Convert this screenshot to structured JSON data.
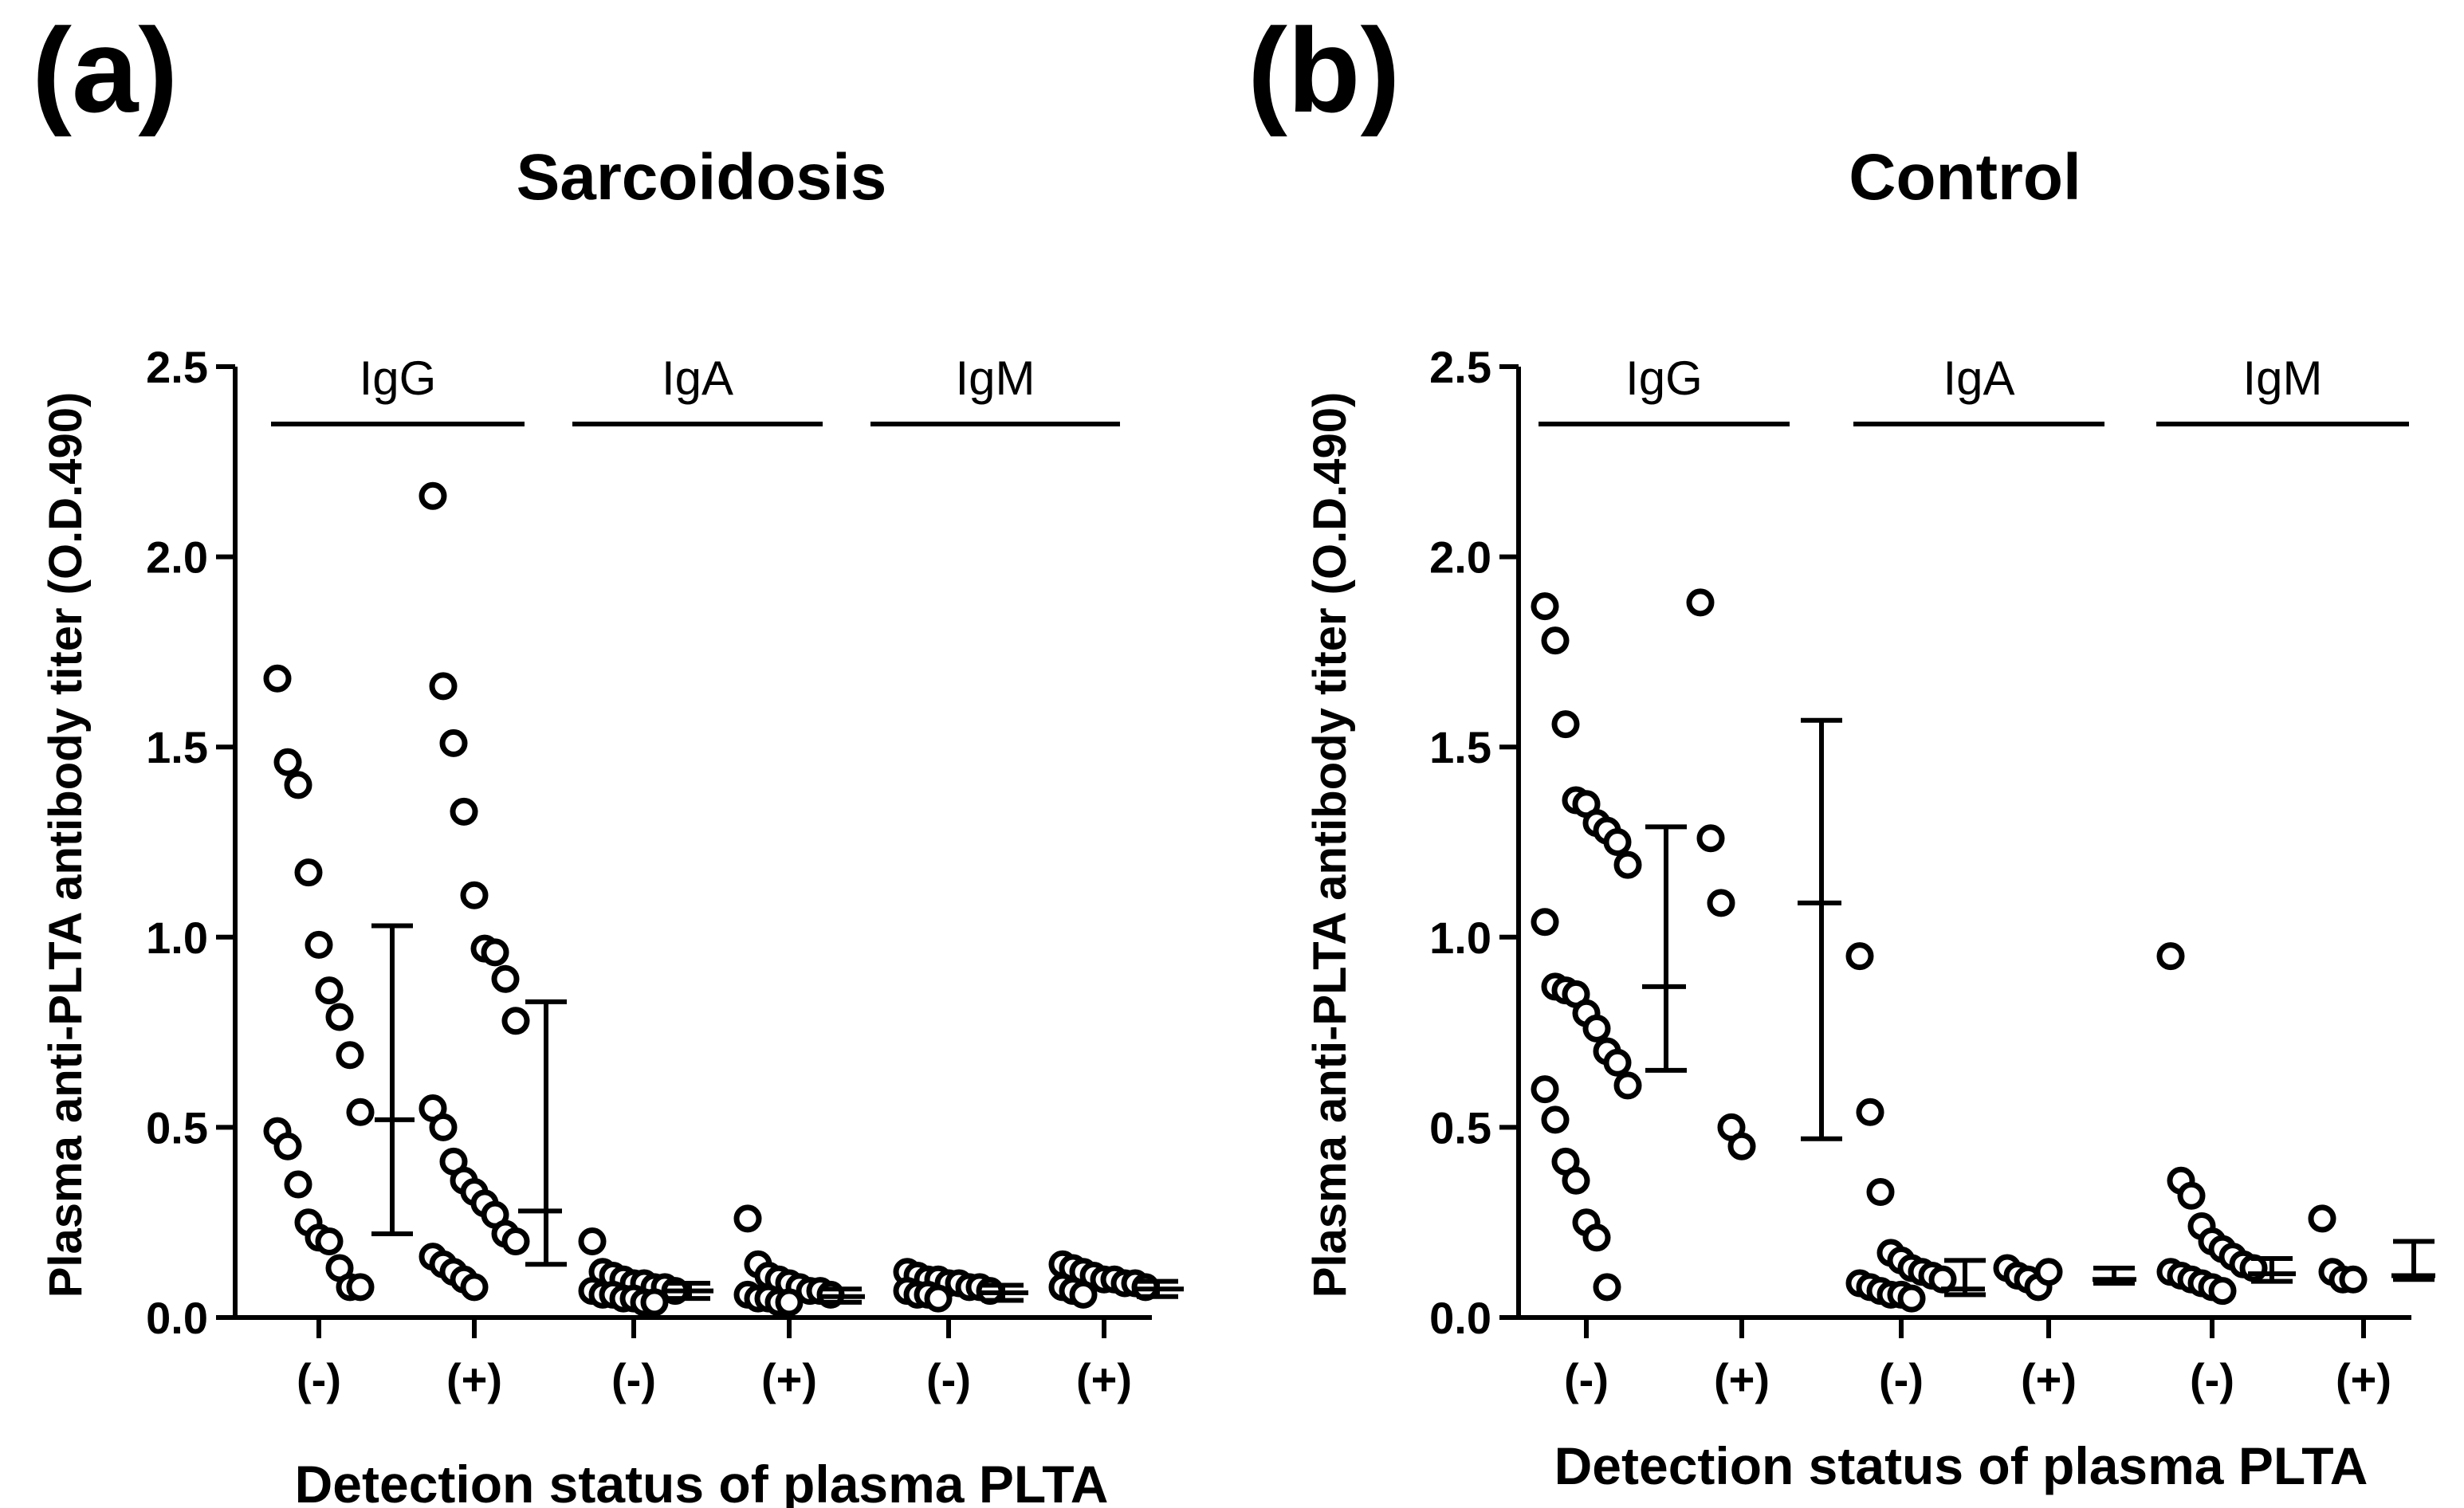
{
  "chart_data": [
    {
      "type": "scatter",
      "panel_label": "(a)",
      "title": "Sarcoidosis",
      "ylabel": "Plasma anti-PLTA antibody titer (O.D.490)",
      "xlabel": "Detection status of plasma PLTA",
      "ylim": [
        0,
        2.5
      ],
      "yticks": [
        "0.0",
        "0.5",
        "1.0",
        "1.5",
        "2.0",
        "2.5"
      ],
      "groups": [
        {
          "name": "IgG",
          "columns": [
            {
              "label": "(-)",
              "points": [
                1.68,
                1.46,
                1.4,
                1.17,
                0.98,
                0.86,
                0.79,
                0.69,
                0.54,
                0.49,
                0.45,
                0.35,
                0.25,
                0.21,
                0.2,
                0.13,
                0.08,
                0.08
              ],
              "mean": 0.52,
              "upper": 1.03,
              "lower": 0.22
            },
            {
              "label": "(+)",
              "points": [
                2.16,
                1.66,
                1.51,
                1.33,
                1.11,
                0.97,
                0.96,
                0.89,
                0.78,
                0.55,
                0.5,
                0.41,
                0.36,
                0.33,
                0.3,
                0.27,
                0.22,
                0.2,
                0.16,
                0.14,
                0.12,
                0.1,
                0.08
              ],
              "mean": 0.28,
              "upper": 0.83,
              "lower": 0.14
            }
          ]
        },
        {
          "name": "IgA",
          "columns": [
            {
              "label": "(-)",
              "points": [
                0.2,
                0.12,
                0.11,
                0.1,
                0.09,
                0.09,
                0.08,
                0.08,
                0.07,
                0.07,
                0.06,
                0.06,
                0.05,
                0.05,
                0.04,
                0.04
              ],
              "mean": 0.07,
              "upper": 0.09,
              "lower": 0.05
            },
            {
              "label": "(+)",
              "points": [
                0.26,
                0.14,
                0.11,
                0.1,
                0.09,
                0.08,
                0.07,
                0.07,
                0.06,
                0.06,
                0.05,
                0.05,
                0.04,
                0.04
              ],
              "mean": 0.055,
              "upper": 0.075,
              "lower": 0.04
            }
          ]
        },
        {
          "name": "IgM",
          "columns": [
            {
              "label": "(-)",
              "points": [
                0.12,
                0.11,
                0.1,
                0.1,
                0.09,
                0.09,
                0.08,
                0.08,
                0.07,
                0.07,
                0.06,
                0.06,
                0.05
              ],
              "mean": 0.065,
              "upper": 0.085,
              "lower": 0.045
            },
            {
              "label": "(+)",
              "points": [
                0.14,
                0.13,
                0.12,
                0.11,
                0.1,
                0.1,
                0.09,
                0.09,
                0.08,
                0.08,
                0.07,
                0.06
              ],
              "mean": 0.075,
              "upper": 0.095,
              "lower": 0.055
            }
          ]
        }
      ]
    },
    {
      "type": "scatter",
      "panel_label": "(b)",
      "title": "Control",
      "ylabel": "Plasma anti-PLTA antibody titer (O.D.490)",
      "xlabel": "Detection status of plasma PLTA",
      "ylim": [
        0,
        2.5
      ],
      "yticks": [
        "0.0",
        "0.5",
        "1.0",
        "1.5",
        "2.0",
        "2.5"
      ],
      "groups": [
        {
          "name": "IgG",
          "columns": [
            {
              "label": "(-)",
              "points": [
                1.87,
                1.78,
                1.56,
                1.36,
                1.35,
                1.3,
                1.28,
                1.25,
                1.19,
                1.04,
                0.87,
                0.86,
                0.85,
                0.8,
                0.76,
                0.7,
                0.67,
                0.61,
                0.6,
                0.52,
                0.41,
                0.36,
                0.25,
                0.21,
                0.08
              ],
              "mean": 0.87,
              "upper": 1.29,
              "lower": 0.65
            },
            {
              "label": "(+)",
              "points": [
                1.88,
                1.26,
                1.09,
                0.5,
                0.45
              ],
              "mean": 1.09,
              "upper": 1.57,
              "lower": 0.47
            }
          ]
        },
        {
          "name": "IgA",
          "columns": [
            {
              "label": "(-)",
              "points": [
                0.95,
                0.54,
                0.33,
                0.17,
                0.15,
                0.13,
                0.12,
                0.11,
                0.1,
                0.09,
                0.08,
                0.07,
                0.06,
                0.06,
                0.05
              ],
              "mean": 0.075,
              "upper": 0.15,
              "lower": 0.06
            },
            {
              "label": "(+)",
              "points": [
                0.13,
                0.11,
                0.1,
                0.08,
                0.12
              ],
              "mean": 0.1,
              "upper": 0.13,
              "lower": 0.09
            }
          ]
        },
        {
          "name": "IgM",
          "columns": [
            {
              "label": "(-)",
              "points": [
                0.95,
                0.36,
                0.32,
                0.24,
                0.2,
                0.18,
                0.16,
                0.14,
                0.13,
                0.12,
                0.11,
                0.1,
                0.09,
                0.08,
                0.07
              ],
              "mean": 0.115,
              "upper": 0.155,
              "lower": 0.095
            },
            {
              "label": "(+)",
              "points": [
                0.26,
                0.12,
                0.1,
                0.1
              ],
              "mean": 0.11,
              "upper": 0.2,
              "lower": 0.1
            }
          ]
        }
      ]
    }
  ]
}
